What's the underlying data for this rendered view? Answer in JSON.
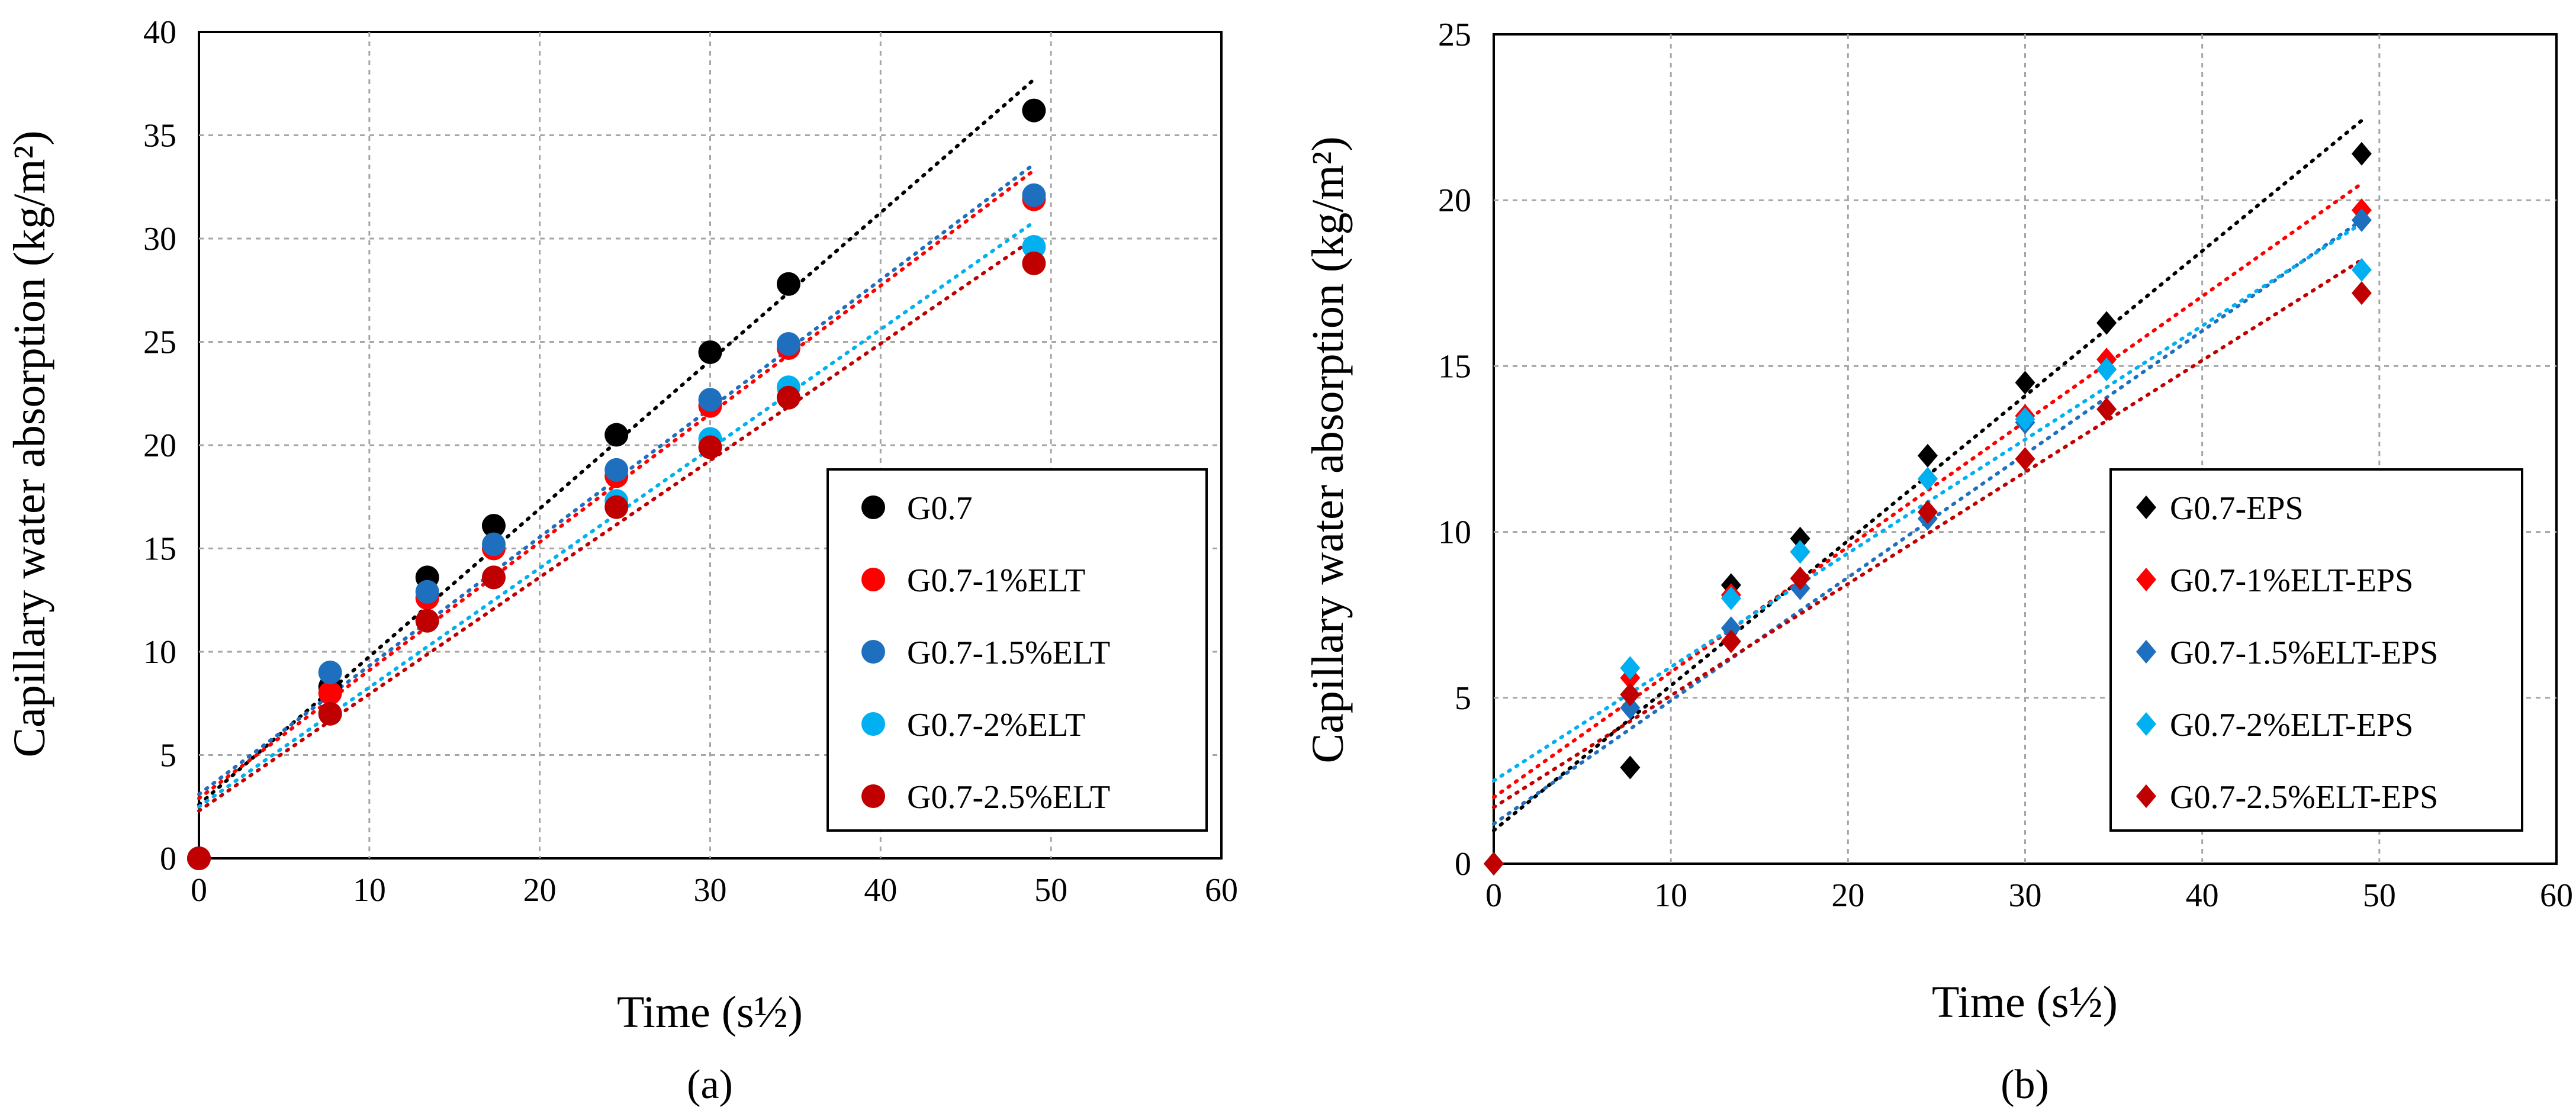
{
  "chart_data": [
    {
      "type": "scatter",
      "panel": "(a)",
      "marker": "circle",
      "xlabel": "Time (s½)",
      "ylabel": "Capillary water absorption (kg/m²)",
      "xlim": [
        0,
        60
      ],
      "ylim": [
        0,
        40
      ],
      "xticks": [
        0,
        10,
        20,
        30,
        40,
        50,
        60
      ],
      "yticks": [
        0,
        5,
        10,
        15,
        20,
        25,
        30,
        35,
        40
      ],
      "grid": true,
      "legend_position": "lower-right",
      "series": [
        {
          "name": "G0.7",
          "color": "#000000",
          "x": [
            0,
            7.7,
            13.4,
            17.3,
            24.5,
            30.0,
            34.6,
            49.0
          ],
          "y": [
            0,
            8.3,
            13.6,
            16.1,
            20.5,
            24.5,
            27.8,
            36.2
          ],
          "trend": [
            [
              0,
              2.6
            ],
            [
              49,
              37.7
            ]
          ]
        },
        {
          "name": "G0.7-1%ELT",
          "color": "#ff0000",
          "x": [
            0,
            7.7,
            13.4,
            17.3,
            24.5,
            30.0,
            34.6,
            49.0
          ],
          "y": [
            0,
            8.0,
            12.6,
            15.0,
            18.5,
            21.9,
            24.7,
            31.9
          ],
          "trend": [
            [
              0,
              2.9
            ],
            [
              49,
              33.3
            ]
          ]
        },
        {
          "name": "G0.7-1.5%ELT",
          "color": "#1f6fbf",
          "x": [
            0,
            7.7,
            13.4,
            17.3,
            24.5,
            30.0,
            34.6,
            49.0
          ],
          "y": [
            0,
            9.0,
            12.9,
            15.2,
            18.8,
            22.2,
            24.9,
            32.1
          ],
          "trend": [
            [
              0,
              3.1
            ],
            [
              49,
              33.6
            ]
          ]
        },
        {
          "name": "G0.7-2%ELT",
          "color": "#00b0f0",
          "x": [
            0,
            7.7,
            13.4,
            17.3,
            24.5,
            30.0,
            34.6,
            49.0
          ],
          "y": [
            0,
            7.0,
            11.5,
            13.6,
            17.3,
            20.3,
            22.8,
            29.6
          ],
          "trend": [
            [
              0,
              2.5
            ],
            [
              49,
              30.8
            ]
          ]
        },
        {
          "name": "G0.7-2.5%ELT",
          "color": "#c00000",
          "x": [
            0,
            7.7,
            13.4,
            17.3,
            24.5,
            30.0,
            34.6,
            49.0
          ],
          "y": [
            0,
            7.0,
            11.5,
            13.6,
            17.0,
            19.9,
            22.3,
            28.8
          ],
          "trend": [
            [
              0,
              2.3
            ],
            [
              49,
              30.0
            ]
          ]
        }
      ]
    },
    {
      "type": "scatter",
      "panel": "(b)",
      "marker": "diamond",
      "xlabel": "Time (s½)",
      "ylabel": "Capillary water absorption (kg/m²)",
      "xlim": [
        0,
        60
      ],
      "ylim": [
        0,
        25
      ],
      "xticks": [
        0,
        10,
        20,
        30,
        40,
        50,
        60
      ],
      "yticks": [
        0,
        5,
        10,
        15,
        20,
        25
      ],
      "grid": true,
      "legend_position": "lower-right",
      "series": [
        {
          "name": "G0.7-EPS",
          "color": "#000000",
          "x": [
            0,
            7.7,
            13.4,
            17.3,
            24.5,
            30.0,
            34.6,
            49.0
          ],
          "y": [
            0,
            2.9,
            8.4,
            9.8,
            12.3,
            14.5,
            16.3,
            21.4
          ],
          "trend": [
            [
              0,
              1.0
            ],
            [
              49,
              22.4
            ]
          ]
        },
        {
          "name": "G0.7-1%ELT-EPS",
          "color": "#ff0000",
          "x": [
            0,
            7.7,
            13.4,
            17.3,
            24.5,
            30.0,
            34.6,
            49.0
          ],
          "y": [
            0,
            5.6,
            8.1,
            9.4,
            11.6,
            13.5,
            15.2,
            19.7
          ],
          "trend": [
            [
              0,
              2.0
            ],
            [
              49,
              20.5
            ]
          ]
        },
        {
          "name": "G0.7-1.5%ELT-EPS",
          "color": "#1f6fbf",
          "x": [
            0,
            7.7,
            13.4,
            17.3,
            24.5,
            30.0,
            34.6,
            49.0
          ],
          "y": [
            0,
            4.7,
            7.1,
            8.3,
            10.4,
            13.3,
            14.9,
            19.4
          ],
          "trend": [
            [
              0,
              1.2
            ],
            [
              49,
              19.4
            ]
          ]
        },
        {
          "name": "G0.7-2%ELT-EPS",
          "color": "#00b0f0",
          "x": [
            0,
            7.7,
            13.4,
            17.3,
            24.5,
            30.0,
            34.6,
            49.0
          ],
          "y": [
            0,
            5.9,
            8.0,
            9.4,
            11.6,
            13.4,
            14.9,
            17.9
          ],
          "trend": [
            [
              0,
              2.5
            ],
            [
              49,
              19.3
            ]
          ]
        },
        {
          "name": "G0.7-2.5%ELT-EPS",
          "color": "#c00000",
          "x": [
            0,
            7.7,
            13.4,
            17.3,
            24.5,
            30.0,
            34.6,
            49.0
          ],
          "y": [
            0,
            5.1,
            6.7,
            8.6,
            10.6,
            12.2,
            13.7,
            17.2
          ],
          "trend": [
            [
              0,
              1.7
            ],
            [
              49,
              18.2
            ]
          ]
        }
      ]
    }
  ]
}
